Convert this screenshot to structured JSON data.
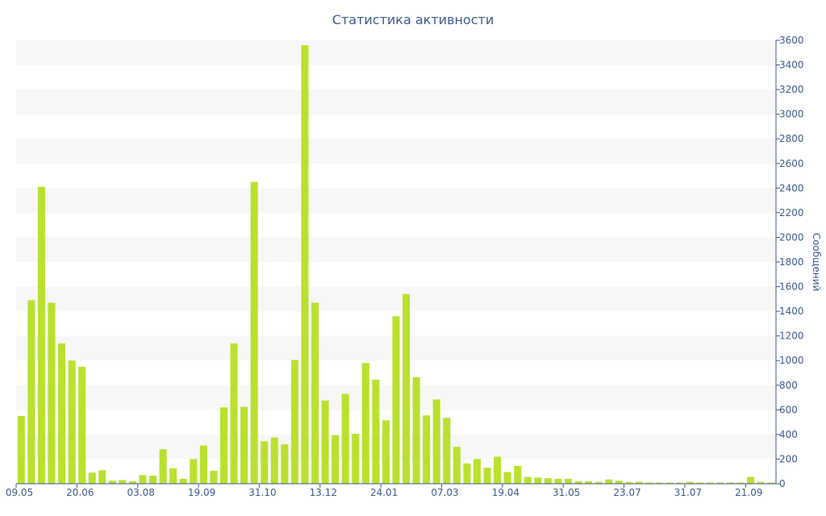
{
  "chart_data": {
    "type": "bar",
    "title": "Статистика активности",
    "ylabel": "Сообщений",
    "ylabel_position": "right",
    "ylim": [
      0,
      3600
    ],
    "yticks": [
      0,
      200,
      400,
      600,
      800,
      1000,
      1200,
      1400,
      1600,
      1800,
      2000,
      2200,
      2400,
      2600,
      2800,
      3000,
      3200,
      3400,
      3600
    ],
    "grid": "alternating horizontal bands",
    "xtick_labels": [
      {
        "label": "09.05",
        "index": 0
      },
      {
        "label": "20.06",
        "index": 6
      },
      {
        "label": "03.08",
        "index": 12
      },
      {
        "label": "19.09",
        "index": 18
      },
      {
        "label": "31.10",
        "index": 24
      },
      {
        "label": "13.12",
        "index": 30
      },
      {
        "label": "24.01",
        "index": 36
      },
      {
        "label": "07.03",
        "index": 42
      },
      {
        "label": "19.04",
        "index": 48
      },
      {
        "label": "31.05",
        "index": 54
      },
      {
        "label": "23.07",
        "index": 60
      },
      {
        "label": "31.07",
        "index": 66
      },
      {
        "label": "21.09",
        "index": 72
      }
    ],
    "values": [
      550,
      1490,
      2410,
      1470,
      1140,
      1000,
      950,
      90,
      110,
      25,
      30,
      20,
      70,
      65,
      280,
      125,
      40,
      200,
      310,
      105,
      620,
      1140,
      625,
      2450,
      345,
      375,
      320,
      1005,
      3560,
      1470,
      675,
      395,
      730,
      405,
      980,
      845,
      515,
      1360,
      1540,
      865,
      555,
      685,
      535,
      300,
      165,
      200,
      130,
      220,
      95,
      145,
      55,
      50,
      45,
      40,
      40,
      20,
      20,
      15,
      35,
      25,
      15,
      15,
      10,
      10,
      10,
      10,
      15,
      10,
      10,
      10,
      10,
      10,
      55,
      15,
      10
    ],
    "bar_color": "#b9e12e",
    "band_color": "#f7f7f7",
    "axis_color": "#3e5a8c"
  }
}
